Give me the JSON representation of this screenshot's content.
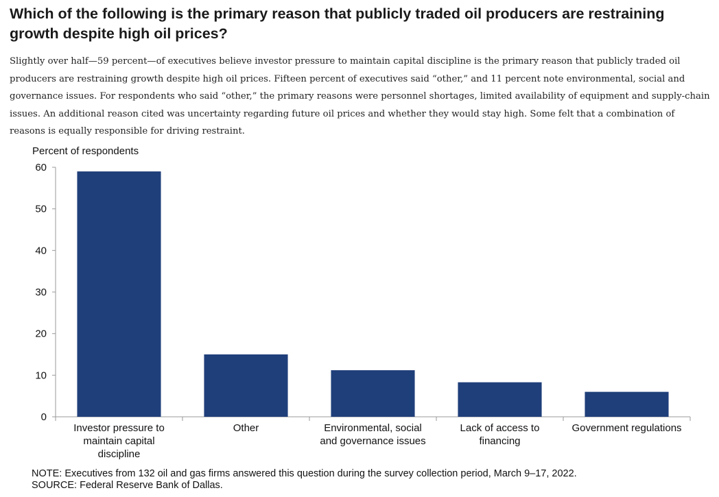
{
  "header": {
    "title": "Which of the following is the primary reason that publicly traded oil producers are restraining growth despite high oil prices?",
    "description": "Slightly over half—59 percent—of executives believe investor pressure to maintain capital discipline is the primary reason that publicly traded oil producers are restraining growth despite high oil prices. Fifteen percent of executives said “other,” and 11 percent note environmental, social and governance issues. For respondents who said “other,” the primary reasons were personnel shortages, limited availability of equipment and supply-chain issues. An additional reason cited was uncertainty regarding future oil prices and whether they would stay high. Some felt that a combination of reasons is equally responsible for driving restraint."
  },
  "chart_data": {
    "type": "bar",
    "ylabel": "Percent of respondents",
    "xlabel": "",
    "categories": [
      [
        "Investor pressure to",
        "maintain capital",
        "discipline"
      ],
      [
        "Other"
      ],
      [
        "Environmental, social",
        "and governance issues"
      ],
      [
        "Lack of access to",
        "financing"
      ],
      [
        "Government regulations"
      ]
    ],
    "values": [
      59,
      15,
      11.2,
      8.3,
      6
    ],
    "ylim": [
      0,
      60
    ],
    "yticks": [
      0,
      10,
      20,
      30,
      40,
      50,
      60
    ],
    "bar_color": "#1f3f7a",
    "grid": false
  },
  "notes": {
    "note": "NOTE: Executives from 132 oil and gas firms answered this question during the survey collection period, March 9–17, 2022.",
    "source": "SOURCE: Federal Reserve Bank of Dallas."
  }
}
